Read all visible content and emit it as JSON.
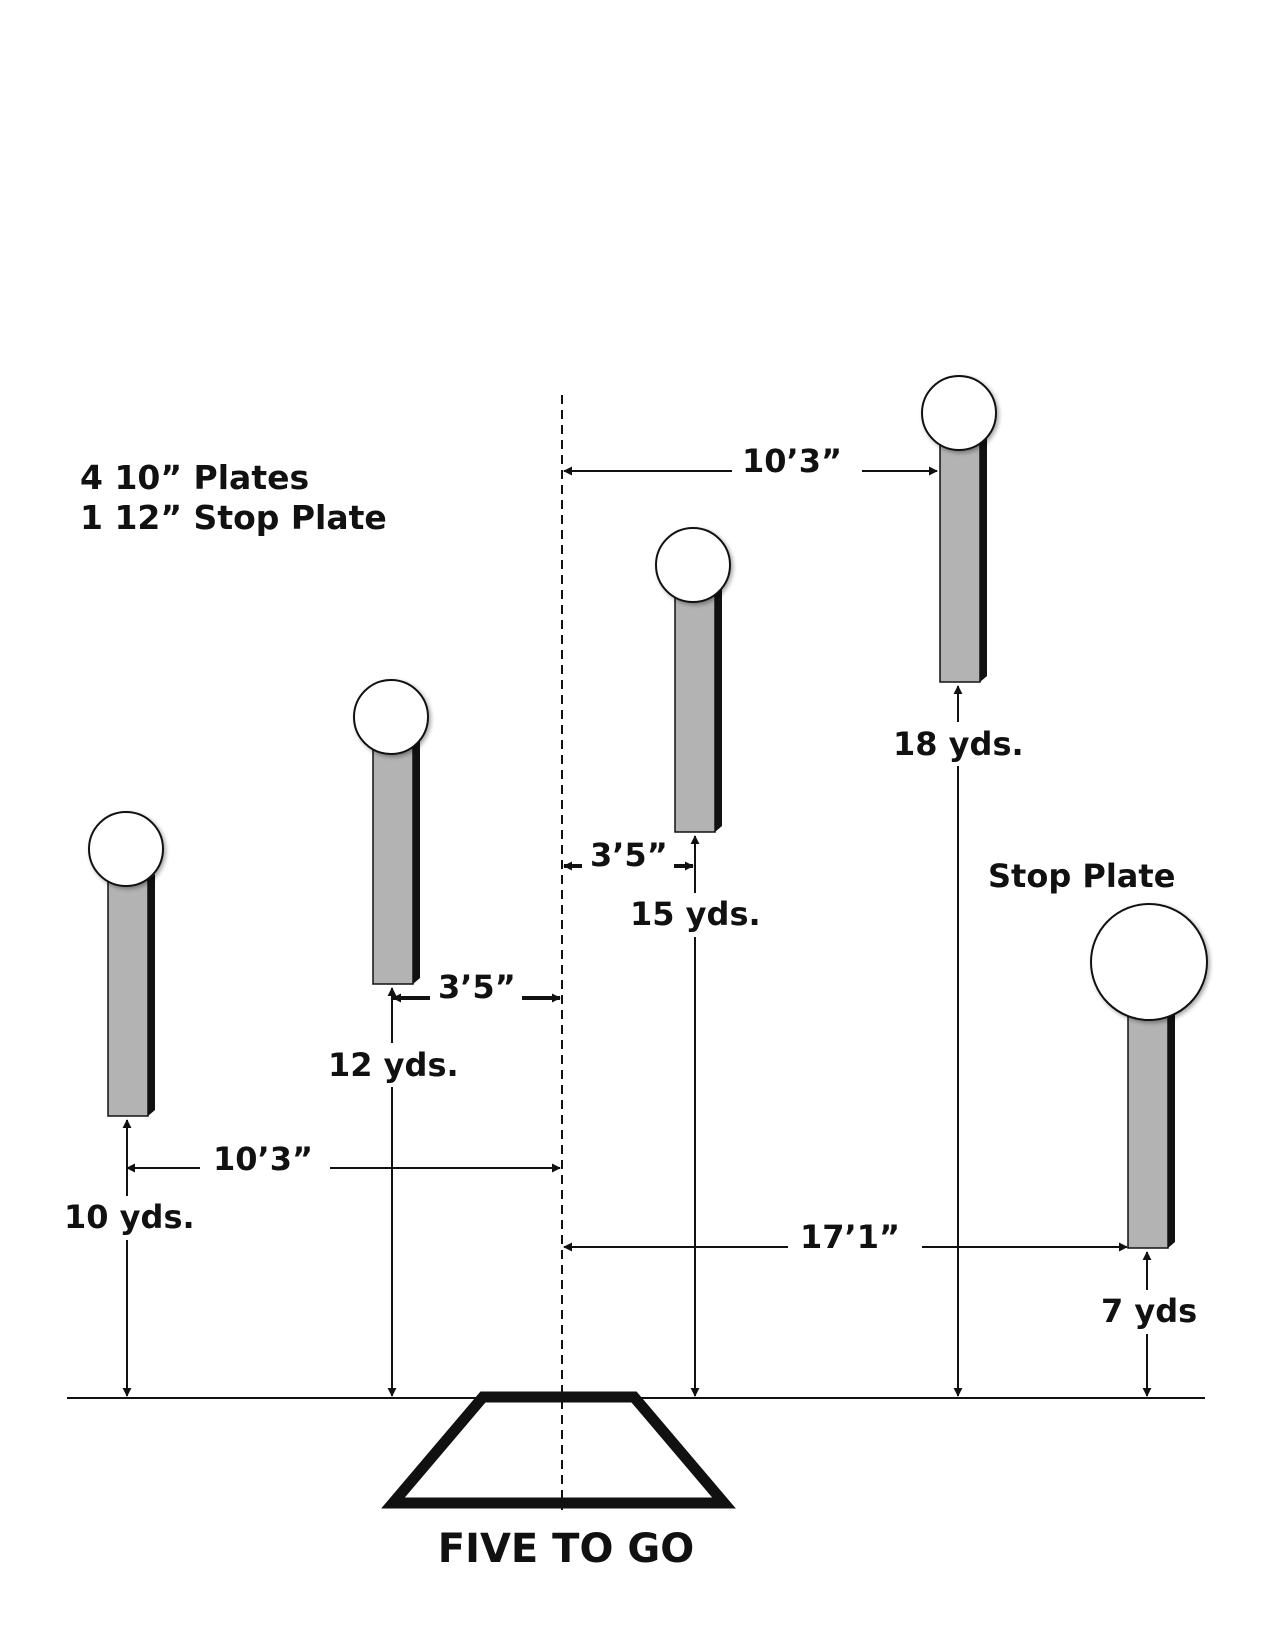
{
  "title": "FIVE TO GO",
  "notes": {
    "line1": "4 10” Plates",
    "line2": "1 12” Stop Plate"
  },
  "stop_plate_label": "Stop Plate",
  "distances": {
    "plate1": "10 yds.",
    "plate2": "12 yds.",
    "plate3": "15 yds.",
    "plate4": "18 yds.",
    "stop": "7 yds"
  },
  "offsets": {
    "left_far": "10’3”",
    "left_near": "3’5”",
    "right_near": "3’5”",
    "right_far": "10’3”",
    "stop": "17’1”"
  },
  "colors": {
    "post": "#b3b3b3",
    "post_shadow": "#111111",
    "plate": "#ffffff",
    "line": "#111111"
  }
}
